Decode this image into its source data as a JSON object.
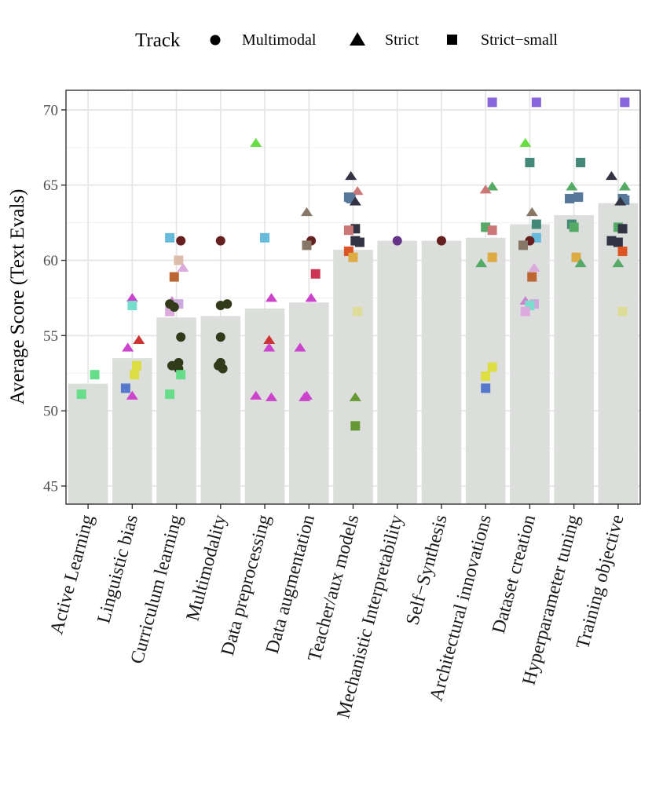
{
  "chart_data": {
    "type": "bar",
    "xlabel": "",
    "ylabel": "Average Score (Text Evals)",
    "ylim": [
      43.8,
      71.3
    ],
    "yticks": [
      45,
      50,
      55,
      60,
      65,
      70
    ],
    "grid": true,
    "legend": {
      "title": "Track",
      "placement": "top",
      "entries": [
        {
          "label": "Multimodal",
          "shape": "circle"
        },
        {
          "label": "Strict",
          "shape": "triangle"
        },
        {
          "label": "Strict−small",
          "shape": "square"
        }
      ]
    },
    "categories": [
      "Active Learning",
      "Linguistic bias",
      "Curriculum learning",
      "Multimodality",
      "Data preprocessing",
      "Data augmentation",
      "Teacher/aux models",
      "Mechanistic Interpretability",
      "Self−Synthesis",
      "Architectural innovations",
      "Dataset creation",
      "Hyperparameter tuning",
      "Training objective"
    ],
    "values": [
      51.8,
      53.5,
      56.2,
      56.3,
      56.8,
      57.2,
      60.7,
      61.3,
      61.3,
      61.5,
      62.4,
      63.0,
      63.8
    ],
    "points": [
      [
        [
          -0.15,
          51.1,
          "s",
          "#66dd88"
        ],
        [
          0.15,
          52.4,
          "s",
          "#66dd88"
        ]
      ],
      [
        [
          -0.15,
          51.5,
          "s",
          "#5577cc"
        ],
        [
          0.0,
          51.0,
          "t",
          "#cc44cc"
        ],
        [
          -0.1,
          54.2,
          "t",
          "#cc44cc"
        ],
        [
          0.0,
          57.5,
          "t",
          "#cc44cc"
        ],
        [
          0.0,
          57.0,
          "s",
          "#77ddcc"
        ],
        [
          0.15,
          54.7,
          "t",
          "#cc3333"
        ],
        [
          0.1,
          53.0,
          "s",
          "#dddd44"
        ],
        [
          0.05,
          52.4,
          "s",
          "#dddd44"
        ]
      ],
      [
        [
          -0.15,
          61.5,
          "s",
          "#66bbdd"
        ],
        [
          0.1,
          61.3,
          "c",
          "#661f1f"
        ],
        [
          0.05,
          60.0,
          "s",
          "#ddbbaa"
        ],
        [
          0.15,
          59.5,
          "t",
          "#ddaadd"
        ],
        [
          -0.05,
          58.9,
          "s",
          "#bb6633"
        ],
        [
          -0.1,
          57.3,
          "t",
          "#cc88cc"
        ],
        [
          -0.15,
          56.6,
          "s",
          "#ddaadd"
        ],
        [
          0.05,
          57.1,
          "s",
          "#ccaadd"
        ],
        [
          -0.15,
          57.1,
          "c",
          "#333a1a"
        ],
        [
          -0.05,
          56.9,
          "c",
          "#333a1a"
        ],
        [
          0.1,
          54.9,
          "c",
          "#333a1a"
        ],
        [
          -0.1,
          53.0,
          "c",
          "#333a1a"
        ],
        [
          0.05,
          53.2,
          "c",
          "#333a1a"
        ],
        [
          0.05,
          52.8,
          "c",
          "#333a1a"
        ],
        [
          0.1,
          52.4,
          "s",
          "#66dd88"
        ],
        [
          -0.15,
          51.1,
          "s",
          "#66dd88"
        ]
      ],
      [
        [
          0.0,
          61.3,
          "c",
          "#661f1f"
        ],
        [
          0.0,
          57.0,
          "c",
          "#333a1a"
        ],
        [
          0.15,
          57.1,
          "c",
          "#333a1a"
        ],
        [
          0.0,
          54.9,
          "c",
          "#333a1a"
        ],
        [
          0.0,
          53.2,
          "c",
          "#333a1a"
        ],
        [
          -0.05,
          53.0,
          "c",
          "#333a1a"
        ],
        [
          0.05,
          52.8,
          "c",
          "#333a1a"
        ]
      ],
      [
        [
          -0.2,
          67.8,
          "t",
          "#66dd44"
        ],
        [
          0.0,
          61.5,
          "s",
          "#66bbdd"
        ],
        [
          0.15,
          57.5,
          "t",
          "#cc44cc"
        ],
        [
          0.1,
          54.7,
          "t",
          "#cc3333"
        ],
        [
          0.1,
          54.2,
          "t",
          "#cc44cc"
        ],
        [
          -0.2,
          51.0,
          "t",
          "#cc44cc"
        ],
        [
          0.15,
          50.9,
          "t",
          "#cc44cc"
        ]
      ],
      [
        [
          -0.05,
          63.2,
          "t",
          "#887766"
        ],
        [
          0.05,
          61.3,
          "c",
          "#661f1f"
        ],
        [
          -0.05,
          61.0,
          "s",
          "#887766"
        ],
        [
          0.15,
          59.1,
          "s",
          "#cc3355"
        ],
        [
          0.05,
          57.5,
          "t",
          "#cc44cc"
        ],
        [
          -0.2,
          54.2,
          "t",
          "#cc44cc"
        ],
        [
          -0.05,
          51.0,
          "t",
          "#cc44cc"
        ],
        [
          -0.1,
          50.9,
          "t",
          "#cc44cc"
        ]
      ],
      [
        [
          -0.05,
          65.6,
          "t",
          "#333344"
        ],
        [
          0.1,
          64.6,
          "t",
          "#cc7777"
        ],
        [
          -0.1,
          64.2,
          "s",
          "#557799"
        ],
        [
          -0.05,
          64.1,
          "s",
          "#557799"
        ],
        [
          0.05,
          63.9,
          "t",
          "#333344"
        ],
        [
          0.05,
          62.1,
          "s",
          "#333344"
        ],
        [
          -0.1,
          62.0,
          "s",
          "#cc7777"
        ],
        [
          0.05,
          61.3,
          "s",
          "#333344"
        ],
        [
          0.15,
          61.2,
          "s",
          "#333344"
        ],
        [
          -0.1,
          60.6,
          "s",
          "#dd5522"
        ],
        [
          0.0,
          60.2,
          "s",
          "#ddaa44"
        ],
        [
          0.1,
          56.6,
          "s",
          "#dddd99"
        ],
        [
          0.05,
          50.9,
          "t",
          "#669933"
        ],
        [
          0.05,
          49.0,
          "s",
          "#669933"
        ]
      ],
      [
        [
          0.0,
          61.3,
          "c",
          "#663388"
        ]
      ],
      [
        [
          0.0,
          61.3,
          "c",
          "#661f1f"
        ]
      ],
      [
        [
          0.15,
          70.5,
          "s",
          "#8866dd"
        ],
        [
          0.15,
          64.9,
          "t",
          "#55aa66"
        ],
        [
          0.0,
          64.7,
          "t",
          "#cc7777"
        ],
        [
          0.0,
          62.2,
          "s",
          "#55aa66"
        ],
        [
          0.15,
          62.0,
          "s",
          "#cc7777"
        ],
        [
          0.15,
          60.2,
          "s",
          "#ddaa44"
        ],
        [
          -0.1,
          59.8,
          "t",
          "#55aa66"
        ],
        [
          0.15,
          52.9,
          "s",
          "#dddd44"
        ],
        [
          0.0,
          52.3,
          "s",
          "#dddd44"
        ],
        [
          0.0,
          51.5,
          "s",
          "#5577cc"
        ]
      ],
      [
        [
          0.15,
          70.5,
          "s",
          "#8866dd"
        ],
        [
          -0.1,
          67.8,
          "t",
          "#66dd44"
        ],
        [
          0.0,
          66.5,
          "s",
          "#448877"
        ],
        [
          0.05,
          63.2,
          "t",
          "#887766"
        ],
        [
          0.15,
          62.4,
          "s",
          "#448877"
        ],
        [
          0.15,
          61.5,
          "s",
          "#66bbdd"
        ],
        [
          0.0,
          61.3,
          "c",
          "#661f1f"
        ],
        [
          -0.15,
          61.0,
          "s",
          "#887766"
        ],
        [
          0.1,
          59.5,
          "t",
          "#ddaadd"
        ],
        [
          0.05,
          58.9,
          "s",
          "#bb6633"
        ],
        [
          -0.1,
          57.3,
          "t",
          "#cc88cc"
        ],
        [
          0.1,
          57.1,
          "s",
          "#ccaadd"
        ],
        [
          0.0,
          57.0,
          "s",
          "#77ddcc"
        ],
        [
          -0.1,
          56.6,
          "s",
          "#ddaadd"
        ]
      ],
      [
        [
          0.15,
          66.5,
          "s",
          "#448877"
        ],
        [
          -0.05,
          64.9,
          "t",
          "#55aa66"
        ],
        [
          -0.1,
          64.1,
          "s",
          "#557799"
        ],
        [
          0.1,
          64.2,
          "s",
          "#557799"
        ],
        [
          -0.05,
          62.4,
          "s",
          "#448877"
        ],
        [
          0.0,
          62.2,
          "s",
          "#55aa66"
        ],
        [
          0.05,
          60.2,
          "s",
          "#ddaa44"
        ],
        [
          0.15,
          59.8,
          "t",
          "#55aa66"
        ]
      ],
      [
        [
          0.15,
          70.5,
          "s",
          "#8866dd"
        ],
        [
          -0.15,
          65.6,
          "t",
          "#333344"
        ],
        [
          0.15,
          64.9,
          "t",
          "#55aa66"
        ],
        [
          0.1,
          64.1,
          "s",
          "#557799"
        ],
        [
          0.15,
          64.0,
          "s",
          "#557799"
        ],
        [
          0.05,
          63.9,
          "t",
          "#333344"
        ],
        [
          0.0,
          62.2,
          "s",
          "#55aa66"
        ],
        [
          0.1,
          62.1,
          "s",
          "#333344"
        ],
        [
          -0.15,
          61.3,
          "s",
          "#333344"
        ],
        [
          0.0,
          61.2,
          "s",
          "#333344"
        ],
        [
          0.1,
          60.6,
          "s",
          "#dd5522"
        ],
        [
          0.0,
          59.8,
          "t",
          "#55aa66"
        ],
        [
          0.1,
          56.6,
          "s",
          "#dddd99"
        ]
      ]
    ]
  }
}
